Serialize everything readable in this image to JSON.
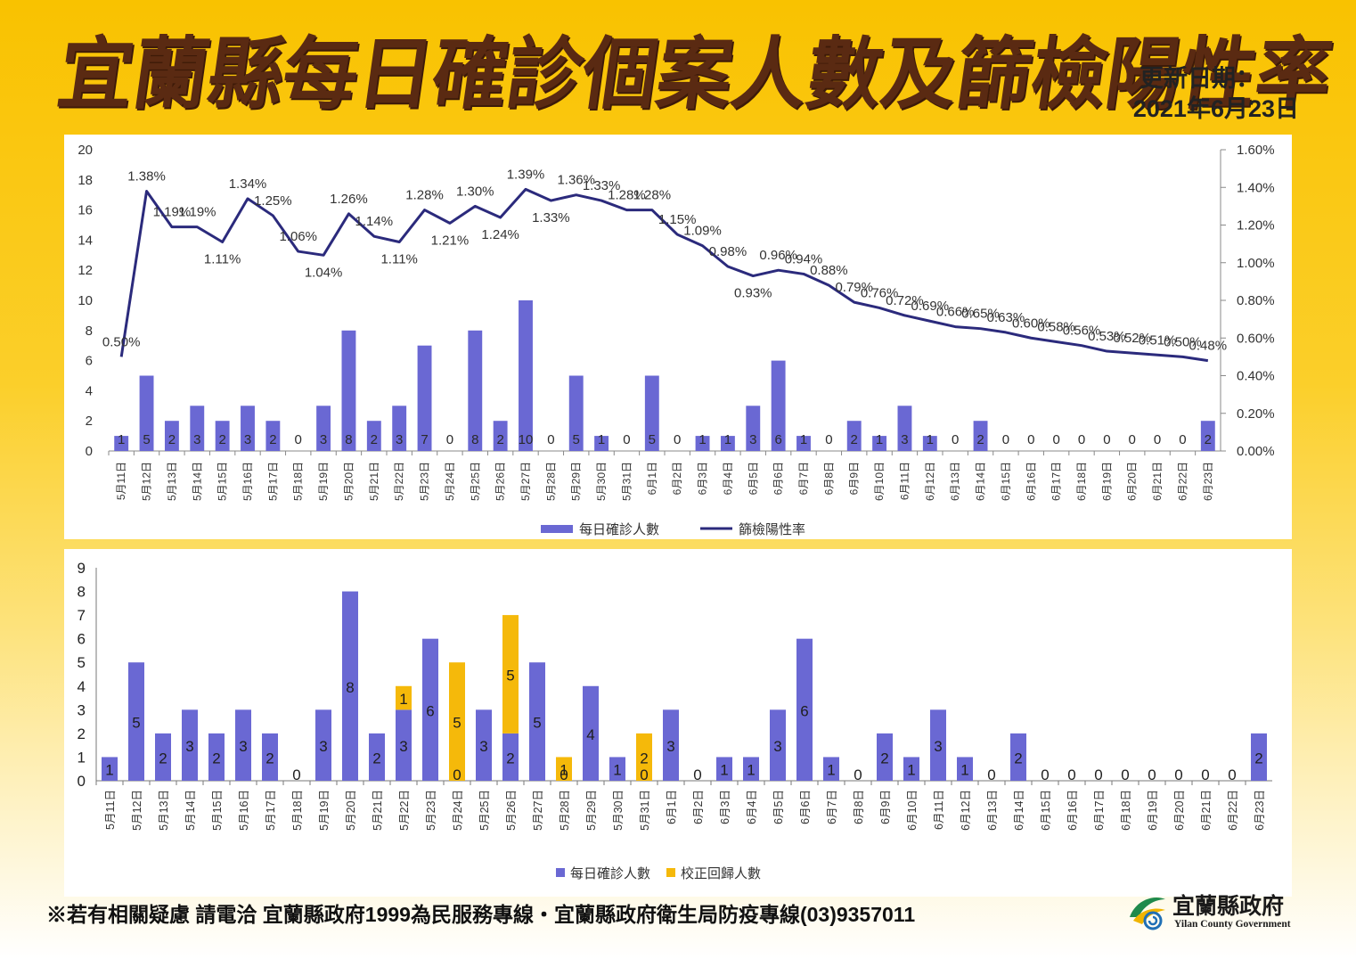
{
  "header": {
    "title": "宜蘭縣每日確診個案人數及篩檢陽性率",
    "update_label": "更新日期：",
    "update_date": "2021年6月23日"
  },
  "footer": {
    "note": "※若有相關疑慮 請電洽  宜蘭縣政府1999為民服務專線・宜蘭縣政府衛生局防疫專線(03)9357011",
    "gov_name": "宜蘭縣政府",
    "gov_name_en": "Yilan County Government"
  },
  "colors": {
    "bar_blue": "#6a68d3",
    "line_navy": "#2b2a7c",
    "bar_yellow": "#f5b90a",
    "title_brown": "#5a2a12"
  },
  "chart_data": [
    {
      "type": "bar+line",
      "categories": [
        "5月11日",
        "5月12日",
        "5月13日",
        "5月14日",
        "5月15日",
        "5月16日",
        "5月17日",
        "5月18日",
        "5月19日",
        "5月20日",
        "5月21日",
        "5月22日",
        "5月23日",
        "5月24日",
        "5月25日",
        "5月26日",
        "5月27日",
        "5月28日",
        "5月29日",
        "5月30日",
        "5月31日",
        "6月1日",
        "6月2日",
        "6月3日",
        "6月4日",
        "6月5日",
        "6月6日",
        "6月7日",
        "6月8日",
        "6月9日",
        "6月10日",
        "6月11日",
        "6月12日",
        "6月13日",
        "6月14日",
        "6月15日",
        "6月16日",
        "6月17日",
        "6月18日",
        "6月19日",
        "6月20日",
        "6月21日",
        "6月22日",
        "6月23日"
      ],
      "series": [
        {
          "name": "每日確診人數",
          "kind": "bar",
          "axis": "left",
          "values": [
            1,
            5,
            2,
            3,
            2,
            3,
            2,
            0,
            3,
            8,
            2,
            3,
            7,
            0,
            8,
            2,
            10,
            0,
            5,
            1,
            0,
            5,
            0,
            1,
            1,
            3,
            6,
            1,
            0,
            2,
            1,
            3,
            1,
            0,
            2,
            0,
            0,
            0,
            0,
            0,
            0,
            0,
            0,
            2
          ]
        },
        {
          "name": "篩檢陽性率",
          "kind": "line",
          "axis": "right",
          "values": [
            0.5,
            1.38,
            1.19,
            1.19,
            1.11,
            1.34,
            1.25,
            1.06,
            1.04,
            1.26,
            1.14,
            1.11,
            1.28,
            1.21,
            1.3,
            1.24,
            1.39,
            1.33,
            1.36,
            1.33,
            1.28,
            1.28,
            1.15,
            1.09,
            0.98,
            0.93,
            0.96,
            0.94,
            0.88,
            0.79,
            0.76,
            0.72,
            0.69,
            0.66,
            0.65,
            0.63,
            0.6,
            0.58,
            0.56,
            0.53,
            0.52,
            0.51,
            0.5,
            0.48
          ],
          "labels": [
            "0.50%",
            "1.38%",
            "1.19%",
            "1.19%",
            "1.11%",
            "1.34%",
            "1.25%",
            "1.06%",
            "1.04%",
            "1.26%",
            "1.14%",
            "1.11%",
            "1.28%",
            "1.21%",
            "1.30%",
            "1.24%",
            "1.39%",
            "1.33%",
            "1.36%",
            "1.33%",
            "1.28%",
            "1.28%",
            "1.15%",
            "1.09%",
            "0.98%",
            "0.93%",
            "0.96%",
            "0.94%",
            "0.88%",
            "0.79%",
            "0.76%",
            "0.72%",
            "0.69%",
            "0.66%",
            "0.65%",
            "0.63%",
            "0.60%",
            "0.58%",
            "0.56%",
            "0.53%",
            "0.52%",
            "0.51%",
            "0.50%",
            "0.48%"
          ]
        }
      ],
      "y_left": {
        "min": 0,
        "max": 20,
        "ticks": [
          "0",
          "2",
          "4",
          "6",
          "8",
          "10",
          "12",
          "14",
          "16",
          "18",
          "20"
        ]
      },
      "y_right": {
        "min": 0,
        "max": 1.6,
        "ticks": [
          "0.00%",
          "0.20%",
          "0.40%",
          "0.60%",
          "0.80%",
          "1.00%",
          "1.20%",
          "1.40%",
          "1.60%"
        ]
      },
      "legend": [
        "每日確診人數",
        "篩檢陽性率"
      ],
      "legend_position": "bottom"
    },
    {
      "type": "stacked-bar",
      "categories": [
        "5月11日",
        "5月12日",
        "5月13日",
        "5月14日",
        "5月15日",
        "5月16日",
        "5月17日",
        "5月18日",
        "5月19日",
        "5月20日",
        "5月21日",
        "5月22日",
        "5月23日",
        "5月24日",
        "5月25日",
        "5月26日",
        "5月27日",
        "5月28日",
        "5月29日",
        "5月30日",
        "5月31日",
        "6月1日",
        "6月2日",
        "6月3日",
        "6月4日",
        "6月5日",
        "6月6日",
        "6月7日",
        "6月8日",
        "6月9日",
        "6月10日",
        "6月11日",
        "6月12日",
        "6月13日",
        "6月14日",
        "6月15日",
        "6月16日",
        "6月17日",
        "6月18日",
        "6月19日",
        "6月20日",
        "6月21日",
        "6月22日",
        "6月23日"
      ],
      "series": [
        {
          "name": "每日確診人數",
          "values": [
            1,
            5,
            2,
            3,
            2,
            3,
            2,
            0,
            3,
            8,
            2,
            3,
            6,
            0,
            3,
            2,
            5,
            0,
            4,
            1,
            0,
            3,
            0,
            1,
            1,
            3,
            6,
            1,
            0,
            2,
            1,
            3,
            1,
            0,
            2,
            0,
            0,
            0,
            0,
            0,
            0,
            0,
            0,
            2
          ]
        },
        {
          "name": "校正回歸人數",
          "values": [
            0,
            0,
            0,
            0,
            0,
            0,
            0,
            0,
            0,
            0,
            0,
            1,
            0,
            5,
            0,
            5,
            0,
            1,
            0,
            0,
            2,
            0,
            0,
            0,
            0,
            0,
            0,
            0,
            0,
            0,
            0,
            0,
            0,
            0,
            0,
            0,
            0,
            0,
            0,
            0,
            0,
            0,
            0,
            0
          ]
        }
      ],
      "y": {
        "min": 0,
        "max": 9,
        "ticks": [
          "0",
          "1",
          "2",
          "3",
          "4",
          "5",
          "6",
          "7",
          "8",
          "9"
        ]
      },
      "legend": [
        "每日確診人數",
        "校正回歸人數"
      ],
      "legend_position": "bottom"
    }
  ]
}
